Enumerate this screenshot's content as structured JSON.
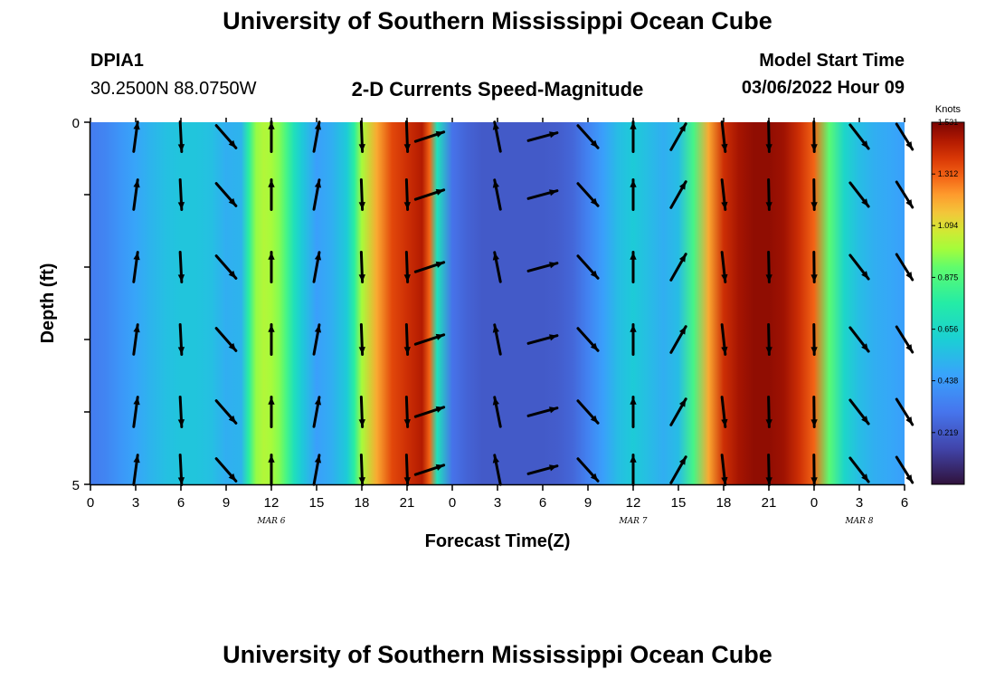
{
  "header": {
    "title": "University of Southern Mississippi Ocean Cube",
    "station": "DPIA1",
    "coords": "30.2500N  88.0750W",
    "subtitle": "2-D Currents Speed-Magnitude",
    "model_start_label": "Model Start Time",
    "model_start_value": "03/06/2022 Hour 09"
  },
  "footer": {
    "title": "University of Southern Mississippi Ocean Cube"
  },
  "chart_data": {
    "type": "heatmap",
    "title": "2-D Currents Speed-Magnitude",
    "xlabel": "Forecast Time(Z)",
    "ylabel": "Depth (ft)",
    "x_range": [
      0,
      54
    ],
    "y_range": [
      0,
      5
    ],
    "x_ticks": [
      0,
      3,
      6,
      9,
      12,
      15,
      18,
      21,
      24,
      27,
      30,
      33,
      36,
      39,
      42,
      45,
      48,
      51,
      54
    ],
    "x_tick_labels": [
      "0",
      "3",
      "6",
      "9",
      "12",
      "15",
      "18",
      "21",
      "0",
      "3",
      "6",
      "9",
      "12",
      "15",
      "18",
      "21",
      "0",
      "3",
      "6"
    ],
    "y_tick_labels": [
      "0",
      "5"
    ],
    "date_labels": [
      {
        "hour": 12,
        "label": "MAR 6"
      },
      {
        "hour": 36,
        "label": "MAR 7"
      },
      {
        "hour": 51,
        "label": "MAR 8"
      }
    ],
    "speed_profile": {
      "hours": [
        0,
        1,
        2,
        3,
        4,
        5,
        6,
        7,
        8,
        9,
        10,
        10.5,
        11,
        11.5,
        12,
        12.5,
        13,
        13.5,
        14,
        15,
        16,
        17,
        17.5,
        18,
        19,
        20,
        21,
        22,
        22.5,
        23,
        24,
        25,
        26,
        27,
        28,
        29,
        30,
        31,
        32,
        33,
        34,
        35,
        36,
        37,
        38,
        39,
        40,
        41,
        42,
        43,
        44,
        45,
        46,
        47,
        48,
        49,
        50,
        51,
        52,
        53,
        54
      ],
      "knots": [
        0.33,
        0.36,
        0.42,
        0.47,
        0.52,
        0.56,
        0.58,
        0.58,
        0.56,
        0.5,
        0.52,
        0.78,
        0.98,
        1.02,
        1.0,
        0.96,
        0.85,
        0.7,
        0.6,
        0.45,
        0.5,
        0.6,
        0.78,
        1.0,
        1.2,
        1.35,
        1.4,
        1.45,
        1.3,
        0.7,
        0.3,
        0.25,
        0.22,
        0.22,
        0.22,
        0.22,
        0.22,
        0.23,
        0.26,
        0.35,
        0.45,
        0.55,
        0.6,
        0.55,
        0.5,
        0.55,
        0.85,
        1.2,
        1.4,
        1.47,
        1.5,
        1.5,
        1.48,
        1.4,
        1.3,
        0.9,
        0.65,
        0.55,
        0.5,
        0.48,
        0.45
      ]
    },
    "vectors": {
      "hours": [
        0,
        3,
        6,
        9,
        12,
        15,
        18,
        21,
        22.5,
        24,
        27,
        30,
        33,
        36,
        39,
        42,
        45,
        48,
        51,
        54
      ],
      "u": [
        0,
        0.08,
        0.03,
        0.35,
        0,
        0.1,
        0.03,
        0.03,
        0.6,
        0,
        -0.1,
        0.55,
        0.45,
        0,
        0.2,
        0.1,
        0.02,
        0.01,
        0.35,
        0.25
      ],
      "v": [
        0,
        0.6,
        -0.6,
        -0.4,
        0.8,
        0.55,
        -0.8,
        -0.8,
        0.2,
        0,
        0.5,
        0.15,
        -0.5,
        0.6,
        0.35,
        -0.9,
        -0.9,
        -0.8,
        -0.45,
        -0.4
      ]
    },
    "colorbar": {
      "unit": "Knots",
      "min": 0,
      "max": 1.531,
      "tick_values": [
        1.531,
        1.312,
        1.094,
        0.875,
        0.656,
        0.438,
        0.219
      ],
      "tick_labels": [
        "1.531",
        "1.312",
        "1.094",
        "0.875",
        "0.656",
        "0.438",
        "0.219"
      ]
    }
  }
}
